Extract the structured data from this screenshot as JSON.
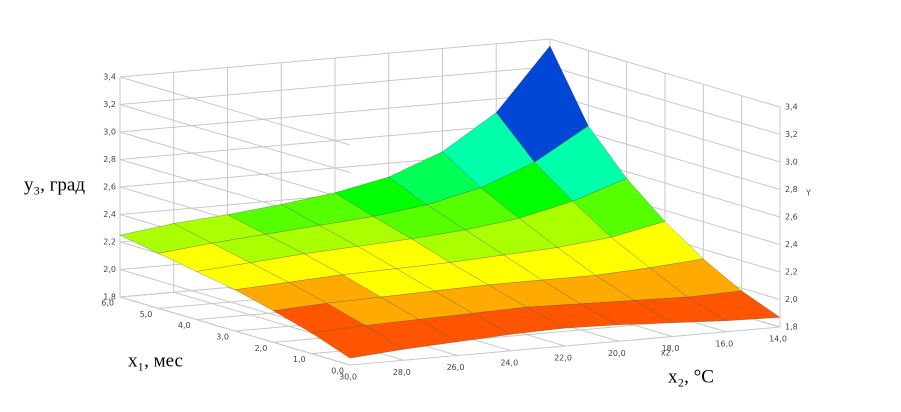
{
  "chart_data": {
    "type": "surface3d",
    "y_label": "y₃, град",
    "x1_label": "x₁, мес",
    "x2_label": "x₂, °C",
    "x2_axis_name": "x2",
    "y_axis_name": "Y",
    "x1": [
      0,
      1,
      2,
      3,
      4,
      5,
      6
    ],
    "x2": [
      30,
      28,
      26,
      24,
      22,
      20,
      18,
      16,
      14
    ],
    "z": [
      [
        1.85,
        1.88,
        1.9,
        1.92,
        1.93,
        1.92,
        1.9,
        1.88,
        1.87
      ],
      [
        1.95,
        1.97,
        1.98,
        1.99,
        2.0,
        1.99,
        1.98,
        1.97,
        1.98
      ],
      [
        2.03,
        2.05,
        2.06,
        2.07,
        2.08,
        2.08,
        2.08,
        2.1,
        2.13
      ],
      [
        2.1,
        2.12,
        2.14,
        2.15,
        2.16,
        2.18,
        2.2,
        2.24,
        2.32
      ],
      [
        2.15,
        2.18,
        2.21,
        2.23,
        2.25,
        2.28,
        2.33,
        2.42,
        2.55
      ],
      [
        2.2,
        2.24,
        2.27,
        2.3,
        2.33,
        2.38,
        2.47,
        2.62,
        2.85
      ],
      [
        2.25,
        2.3,
        2.33,
        2.37,
        2.42,
        2.5,
        2.65,
        2.9,
        3.35
      ]
    ],
    "ylim": [
      1.8,
      3.4
    ],
    "yticks": [
      {
        "value": 1.8,
        "label": "1,8"
      },
      {
        "value": 2.0,
        "label": "2,0"
      },
      {
        "value": 2.2,
        "label": "2,2"
      },
      {
        "value": 2.4,
        "label": "2,4"
      },
      {
        "value": 2.6,
        "label": "2,6"
      },
      {
        "value": 2.8,
        "label": "2,8"
      },
      {
        "value": 3.0,
        "label": "3,0"
      },
      {
        "value": 3.2,
        "label": "3,2"
      },
      {
        "value": 3.4,
        "label": "3,4"
      }
    ],
    "x1lim": [
      0,
      6
    ],
    "x1ticks": [
      {
        "value": 0,
        "label": "0,0"
      },
      {
        "value": 1,
        "label": "1,0"
      },
      {
        "value": 2,
        "label": "2,0"
      },
      {
        "value": 3,
        "label": "3,0"
      },
      {
        "value": 4,
        "label": "4,0"
      },
      {
        "value": 5,
        "label": "5,0"
      },
      {
        "value": 6,
        "label": "6,0"
      }
    ],
    "x2lim": [
      30,
      14
    ],
    "x2ticks": [
      {
        "value": 30,
        "label": "30,0"
      },
      {
        "value": 28,
        "label": "28,0"
      },
      {
        "value": 26,
        "label": "26,0"
      },
      {
        "value": 24,
        "label": "24,0"
      },
      {
        "value": 22,
        "label": "22,0"
      },
      {
        "value": 20,
        "label": "20,0"
      },
      {
        "value": 18,
        "label": "18,0"
      },
      {
        "value": 16,
        "label": "16,0"
      },
      {
        "value": 14,
        "label": "14,0"
      }
    ],
    "grid": true
  }
}
